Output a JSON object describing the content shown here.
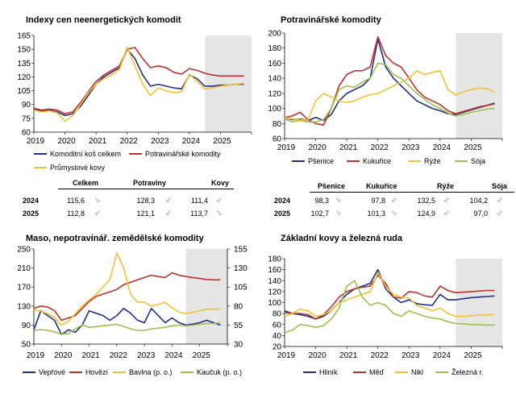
{
  "panels": [
    {
      "id": "p1",
      "title": "Indexy cen neenergetických komodit",
      "chart_data": {
        "type": "line",
        "title": "Indexy cen neenergetických komodit",
        "x_start": 2019.0,
        "x_step": 0.25,
        "xlim": [
          2019,
          2026
        ],
        "x_ticks": [
          "2019",
          "2020",
          "2021",
          "2022",
          "2023",
          "2024",
          "2025"
        ],
        "y_left": {
          "lim": [
            60,
            165
          ],
          "ticks": [
            60,
            75,
            90,
            105,
            120,
            135,
            150,
            165
          ]
        },
        "forecast_from": 2024.5,
        "series": [
          {
            "name": "Komoditní koš celkem",
            "color": "#1f2f8c",
            "axis": "left",
            "values": [
              85,
              83,
              84,
              82,
              78,
              80,
              88,
              100,
              112,
              120,
              125,
              130,
              150,
              140,
              122,
              110,
              112,
              110,
              108,
              107,
              122,
              118,
              110,
              110,
              111,
              111,
              112,
              112
            ]
          },
          {
            "name": "Potravinářské komodity",
            "color": "#c0312b",
            "axis": "left",
            "values": [
              86,
              84,
              85,
              84,
              80,
              82,
              92,
              104,
              115,
              122,
              127,
              132,
              150,
              152,
              140,
              130,
              132,
              130,
              125,
              123,
              129,
              127,
              124,
              122,
              121,
              121,
              121,
              121
            ]
          },
          {
            "name": "Průmyslové kovy",
            "color": "#f2c230",
            "axis": "left",
            "values": [
              84,
              82,
              83,
              81,
              72,
              78,
              90,
              103,
              112,
              118,
              122,
              128,
              152,
              132,
              112,
              100,
              108,
              105,
              103,
              104,
              123,
              115,
              107,
              108,
              110,
              111,
              112,
              113
            ]
          }
        ]
      },
      "table": {
        "headers": [
          "Celkem",
          "Potraviny",
          "Kovy"
        ],
        "rows": [
          {
            "year": "2024",
            "values": [
              "115,6",
              "128,3",
              "111,4"
            ]
          },
          {
            "year": "2025",
            "values": [
              "112,8",
              "121,1",
              "113,7"
            ]
          }
        ]
      }
    },
    {
      "id": "p2",
      "title": "Potravinářské komodity",
      "chart_data": {
        "type": "line",
        "title": "Potravinářské komodity",
        "x_start": 2019.0,
        "x_step": 0.25,
        "xlim": [
          2019,
          2026
        ],
        "x_ticks": [
          "2019",
          "2020",
          "2021",
          "2022",
          "2023",
          "2024",
          "2025"
        ],
        "y_left": {
          "lim": [
            60,
            200
          ],
          "ticks": [
            60,
            80,
            100,
            120,
            140,
            160,
            180,
            200
          ]
        },
        "forecast_from": 2024.5,
        "series": [
          {
            "name": "Pšenice",
            "color": "#1f2f8c",
            "axis": "left",
            "values": [
              88,
              85,
              86,
              84,
              88,
              84,
              92,
              110,
              120,
              125,
              130,
              140,
              192,
              155,
              140,
              130,
              120,
              110,
              105,
              100,
              97,
              93,
              92,
              95,
              98,
              101,
              104,
              107
            ]
          },
          {
            "name": "Kukuřice",
            "color": "#c0312b",
            "axis": "left",
            "values": [
              88,
              90,
              95,
              85,
              80,
              78,
              100,
              130,
              145,
              150,
              150,
              155,
              195,
              170,
              160,
              155,
              140,
              125,
              115,
              110,
              105,
              97,
              93,
              96,
              99,
              102,
              104,
              106
            ]
          },
          {
            "name": "Rýže",
            "color": "#f2c230",
            "axis": "left",
            "values": [
              88,
              86,
              85,
              84,
              110,
              120,
              115,
              110,
              108,
              110,
              115,
              118,
              120,
              125,
              130,
              135,
              140,
              150,
              145,
              148,
              150,
              125,
              118,
              122,
              125,
              127,
              126,
              122
            ]
          },
          {
            "name": "Sója",
            "color": "#9bc34a",
            "axis": "left",
            "values": [
              86,
              82,
              84,
              82,
              82,
              85,
              100,
              125,
              130,
              128,
              135,
              140,
              160,
              158,
              145,
              140,
              130,
              120,
              112,
              105,
              100,
              94,
              90,
              92,
              95,
              97,
              99,
              100
            ]
          }
        ]
      },
      "table": {
        "headers": [
          "Pšenice",
          "Kukuřice",
          "Rýže",
          "Sója"
        ],
        "rows": [
          {
            "year": "2024",
            "values": [
              "98,3",
              "97,8",
              "132,5",
              "104,2"
            ]
          },
          {
            "year": "2025",
            "values": [
              "102,7",
              "101,3",
              "124,9",
              "97,0"
            ]
          }
        ]
      }
    },
    {
      "id": "p3",
      "title": "Maso, nepotravinář. zemědělské komodity",
      "chart_data": {
        "type": "line",
        "title": "Maso, nepotravinář. zemědělské komodity",
        "x_start": 2019.0,
        "x_step": 0.25,
        "xlim": [
          2019,
          2026
        ],
        "x_ticks": [
          "2019",
          "2020",
          "2021",
          "2022",
          "2023",
          "2024",
          "2025"
        ],
        "y_left": {
          "lim": [
            50,
            250
          ],
          "ticks": [
            50,
            90,
            130,
            170,
            210,
            250
          ]
        },
        "y_right": {
          "lim": [
            30,
            155
          ],
          "ticks": [
            30,
            55,
            80,
            105,
            130,
            155
          ]
        },
        "forecast_from": 2024.5,
        "series": [
          {
            "name": "Vepřové",
            "color": "#1f2f8c",
            "axis": "left",
            "values": [
              80,
              120,
              110,
              100,
              70,
              80,
              75,
              90,
              120,
              115,
              110,
              100,
              110,
              125,
              115,
              100,
              95,
              125,
              110,
              95,
              105,
              95,
              90,
              92,
              95,
              100,
              95,
              90
            ]
          },
          {
            "name": "Hovězí",
            "color": "#c0312b",
            "axis": "left",
            "values": [
              125,
              130,
              128,
              120,
              100,
              105,
              110,
              125,
              140,
              150,
              155,
              160,
              165,
              175,
              180,
              185,
              190,
              195,
              192,
              190,
              200,
              195,
              192,
              190,
              188,
              186,
              185,
              185
            ]
          },
          {
            "name": "Bavlna (p. o.)",
            "color": "#f2c230",
            "axis": "right",
            "values": [
              75,
              73,
              70,
              65,
              55,
              60,
              70,
              80,
              88,
              95,
              105,
              115,
              150,
              130,
              95,
              85,
              85,
              80,
              82,
              85,
              78,
              72,
              70,
              72,
              74,
              76,
              76,
              76
            ]
          },
          {
            "name": "Kaučuk (p. o.)",
            "color": "#9bc34a",
            "axis": "right",
            "values": [
              48,
              49,
              48,
              46,
              43,
              44,
              50,
              55,
              52,
              53,
              54,
              55,
              56,
              53,
              50,
              48,
              48,
              50,
              51,
              52,
              54,
              55,
              54,
              55,
              56,
              57,
              57,
              58
            ]
          }
        ]
      }
    },
    {
      "id": "p4",
      "title": "Základní kovy a železná ruda",
      "chart_data": {
        "type": "line",
        "title": "Základní kovy a železná ruda",
        "x_start": 2019.0,
        "x_step": 0.25,
        "xlim": [
          2019,
          2026
        ],
        "x_ticks": [
          "2019",
          "2020",
          "2021",
          "2022",
          "2023",
          "2024",
          "2025"
        ],
        "y_left": {
          "lim": [
            20,
            180
          ],
          "ticks": [
            20,
            40,
            60,
            80,
            100,
            120,
            140,
            160,
            180
          ]
        },
        "forecast_from": 2024.5,
        "series": [
          {
            "name": "Hliník",
            "color": "#1f2f8c",
            "axis": "left",
            "values": [
              85,
              80,
              78,
              75,
              70,
              75,
              85,
              100,
              115,
              125,
              130,
              135,
              160,
              125,
              110,
              100,
              105,
              98,
              96,
              95,
              115,
              105,
              105,
              107,
              109,
              110,
              111,
              112
            ]
          },
          {
            "name": "Měď",
            "color": "#c0312b",
            "axis": "left",
            "values": [
              82,
              80,
              80,
              78,
              70,
              78,
              92,
              110,
              120,
              125,
              128,
              130,
              150,
              135,
              110,
              108,
              120,
              118,
              112,
              110,
              130,
              122,
              118,
              119,
              120,
              121,
              122,
              122
            ]
          },
          {
            "name": "Nikl",
            "color": "#f2c230",
            "axis": "left",
            "values": [
              75,
              80,
              88,
              85,
              75,
              78,
              85,
              100,
              105,
              110,
              115,
              120,
              155,
              130,
              115,
              110,
              108,
              95,
              90,
              85,
              90,
              80,
              75,
              75,
              76,
              77,
              78,
              78
            ]
          },
          {
            "name": "Železná r.",
            "color": "#9bc34a",
            "axis": "left",
            "values": [
              45,
              50,
              60,
              58,
              55,
              58,
              70,
              90,
              130,
              140,
              110,
              95,
              100,
              95,
              80,
              75,
              85,
              80,
              75,
              72,
              70,
              65,
              62,
              61,
              60,
              60,
              59,
              59
            ]
          }
        ]
      }
    }
  ]
}
